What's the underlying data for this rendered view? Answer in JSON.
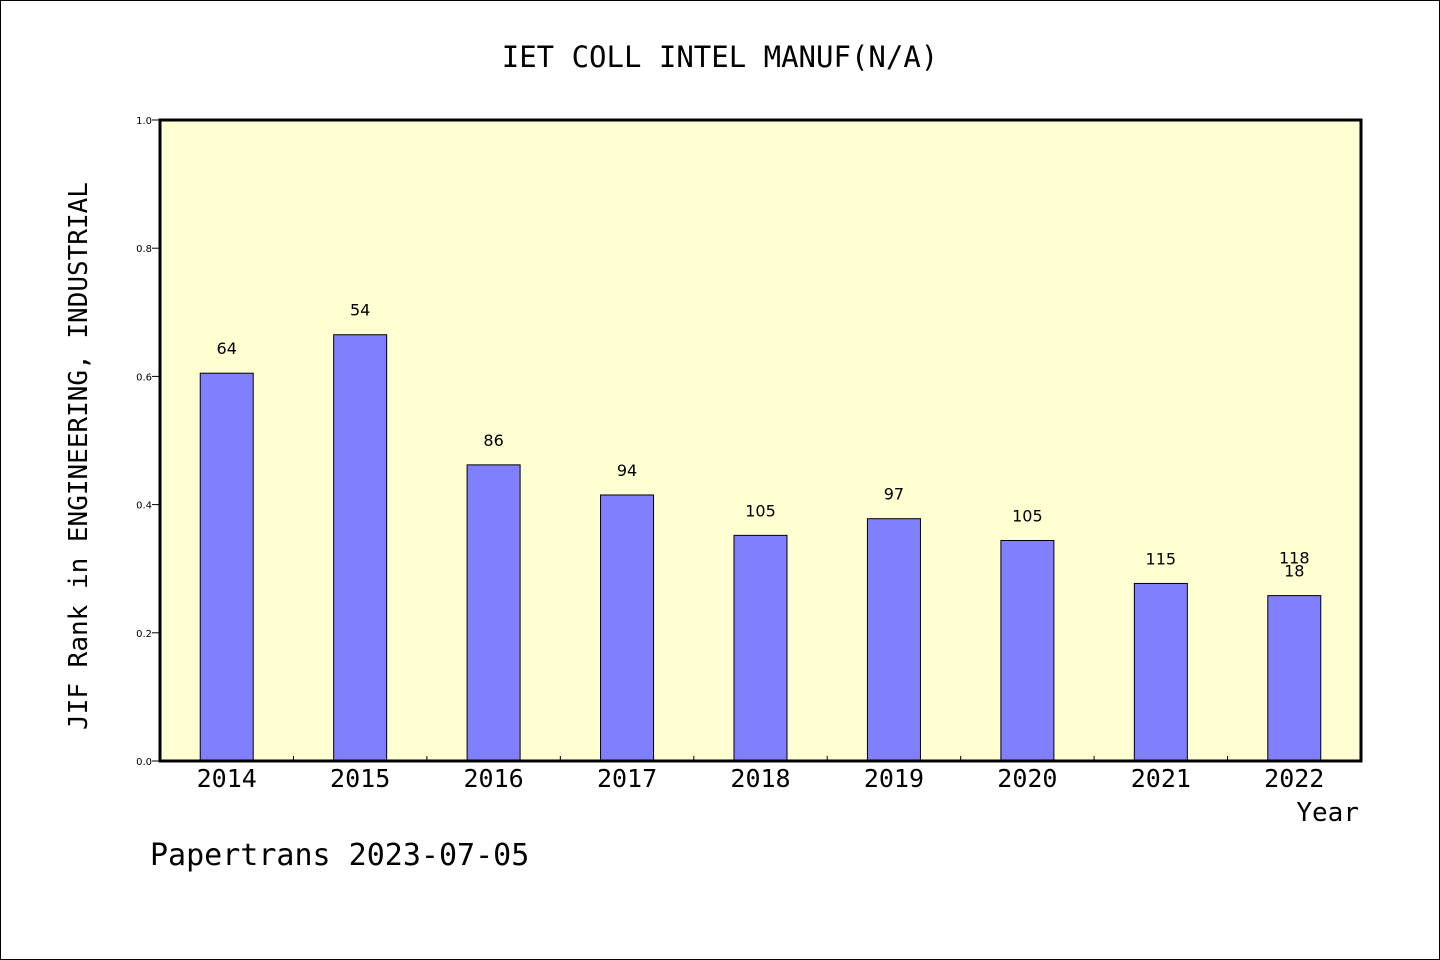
{
  "chart_data": {
    "type": "bar",
    "title": "IET COLL INTEL MANUF(N/A)",
    "xlabel": "Year",
    "ylabel": "JIF Rank in ENGINEERING, INDUSTRIAL",
    "ylim": [
      0,
      1.0
    ],
    "yticks": [
      "0.0",
      "0.2",
      "0.4",
      "0.6",
      "0.8",
      "1.0"
    ],
    "categories": [
      "2014",
      "2015",
      "2016",
      "2017",
      "2018",
      "2019",
      "2020",
      "2021",
      "2022"
    ],
    "values": [
      0.605,
      0.665,
      0.462,
      0.415,
      0.352,
      0.378,
      0.344,
      0.277,
      0.258
    ],
    "data_labels": [
      "64",
      "54",
      "86",
      "94",
      "105",
      "97",
      "105",
      "115",
      "18"
    ],
    "extra_labels": [
      {
        "category": "2022",
        "text": "118"
      }
    ],
    "grid": false,
    "legend": "none",
    "colors": {
      "plot_bg": "#ffffd2",
      "bar": "#8080ff",
      "axis": "#000000"
    }
  },
  "footer": {
    "text": "Papertrans 2023-07-05"
  }
}
